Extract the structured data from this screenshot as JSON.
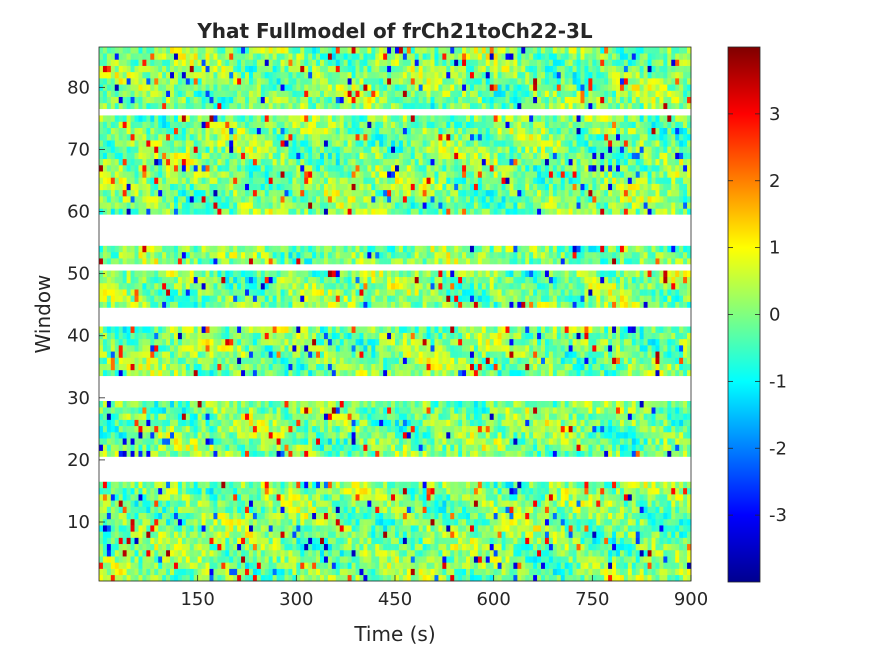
{
  "chart_data": {
    "type": "heatmap",
    "title": "Yhat Fullmodel of frCh21toCh22-3L",
    "xlabel": "Time (s)",
    "ylabel": "Window",
    "xlim": [
      0,
      900
    ],
    "ylim": [
      0.5,
      86.5
    ],
    "xticks": [
      150,
      300,
      450,
      600,
      750,
      900
    ],
    "yticks": [
      10,
      20,
      30,
      40,
      50,
      60,
      70,
      80
    ],
    "grid": false,
    "colormap": "jet",
    "colorbar": {
      "range": [
        -4,
        4
      ],
      "ticks": [
        -3,
        -2,
        -1,
        0,
        1,
        2,
        3
      ],
      "location": "right"
    },
    "missing_windows": [
      [
        17,
        20
      ],
      [
        30,
        33
      ],
      [
        42,
        44
      ],
      [
        51,
        51
      ],
      [
        55,
        59
      ],
      [
        76,
        76
      ]
    ],
    "note_values": "Per-cell values range roughly from -4 to 4; individual cell values are not legible."
  }
}
